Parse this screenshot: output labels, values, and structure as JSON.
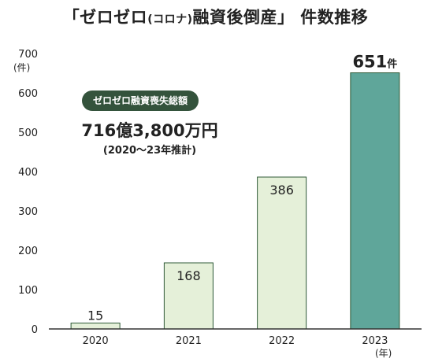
{
  "header": {
    "title_open": "「ゼロゼロ",
    "title_paren": "(コロナ)",
    "title_close": "融資後倒産」 件数推移"
  },
  "callout": {
    "badge": "ゼロゼロ融資喪失総額",
    "amount": "716億3,800万円",
    "note": "(2020～23年推計)"
  },
  "axis": {
    "y_unit": "(件)",
    "x_unit": "(年)",
    "value_suffix": "件"
  },
  "colors": {
    "bar_light": "#e5f0d9",
    "bar_light_stroke": "#2f5a37",
    "bar_highlight": "#5fa69a",
    "bar_highlight_stroke": "#2f5a37",
    "axis": "#333333",
    "badge": "#34533c"
  },
  "chart_data": {
    "type": "bar",
    "categories": [
      "2020",
      "2021",
      "2022",
      "2023"
    ],
    "values": [
      15,
      168,
      386,
      651
    ],
    "highlight": "2023",
    "title": "「ゼロゼロ(コロナ)融資後倒産」 件数推移",
    "xlabel": "(年)",
    "ylabel": "(件)",
    "ylim": [
      0,
      700
    ],
    "yticks": [
      0,
      100,
      200,
      300,
      400,
      500,
      600,
      700
    ],
    "grid": false
  }
}
